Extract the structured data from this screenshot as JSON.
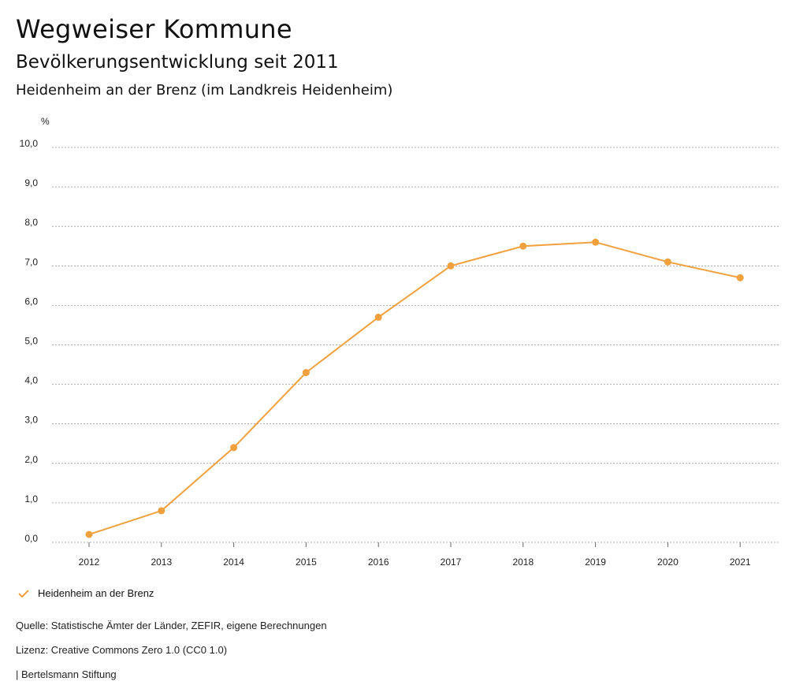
{
  "header": {
    "title": "Wegweiser Kommune",
    "subtitle": "Bevölkerungsentwicklung seit 2011",
    "region": "Heidenheim an der Brenz (im Landkreis Heidenheim)"
  },
  "chart_data": {
    "type": "line",
    "ylabel": "%",
    "ylim": [
      0,
      10
    ],
    "yticks": [
      "0,0",
      "1,0",
      "2,0",
      "3,0",
      "4,0",
      "5,0",
      "6,0",
      "7,0",
      "8,0",
      "9,0",
      "10,0"
    ],
    "x": [
      "2012",
      "2013",
      "2014",
      "2015",
      "2016",
      "2017",
      "2018",
      "2019",
      "2020",
      "2021"
    ],
    "series": [
      {
        "name": "Heidenheim an der Brenz",
        "values": [
          0.2,
          0.8,
          2.4,
          4.3,
          5.7,
          7.0,
          7.5,
          7.6,
          7.1,
          6.7
        ]
      }
    ],
    "color": "#f0a03c",
    "grid": true,
    "legend_position": "bottom-left"
  },
  "footer": {
    "source": "Quelle: Statistische Ämter der Länder, ZEFIR, eigene Berechnungen",
    "license": "Lizenz: Creative Commons Zero 1.0 (CC0 1.0)",
    "publisher": "| Bertelsmann Stiftung"
  }
}
